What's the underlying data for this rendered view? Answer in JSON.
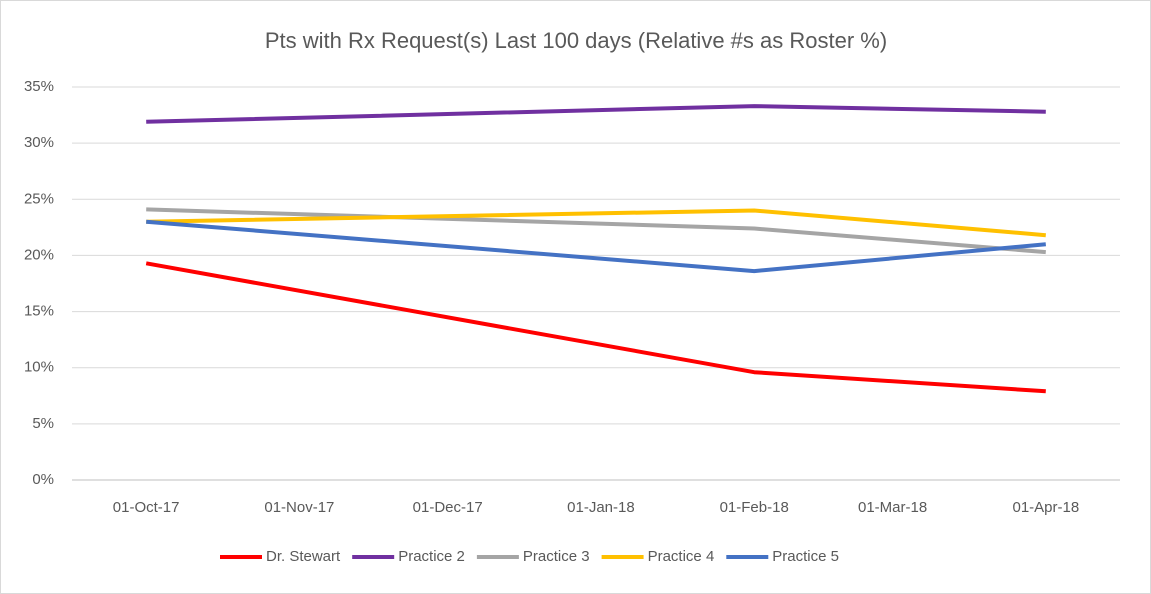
{
  "chart_data": {
    "type": "line",
    "title": "Pts with Rx Request(s) Last 100 days (Relative #s as Roster %)",
    "x": [
      "2017-10-01",
      "2018-02-01",
      "2018-04-01"
    ],
    "xlim": [
      "2017-09-16",
      "2018-04-16"
    ],
    "xticks": [
      {
        "value": "2017-10-01",
        "label": "01-Oct-17"
      },
      {
        "value": "2017-11-01",
        "label": "01-Nov-17"
      },
      {
        "value": "2017-12-01",
        "label": "01-Dec-17"
      },
      {
        "value": "2018-01-01",
        "label": "01-Jan-18"
      },
      {
        "value": "2018-02-01",
        "label": "01-Feb-18"
      },
      {
        "value": "2018-03-01",
        "label": "01-Mar-18"
      },
      {
        "value": "2018-04-01",
        "label": "01-Apr-18"
      }
    ],
    "ylim": [
      0,
      35
    ],
    "yticks": [
      {
        "value": 0,
        "label": "0%"
      },
      {
        "value": 5,
        "label": "5%"
      },
      {
        "value": 10,
        "label": "10%"
      },
      {
        "value": 15,
        "label": "15%"
      },
      {
        "value": 20,
        "label": "20%"
      },
      {
        "value": 25,
        "label": "25%"
      },
      {
        "value": 30,
        "label": "30%"
      },
      {
        "value": 35,
        "label": "35%"
      }
    ],
    "grid": true,
    "legend": "bottom",
    "series": [
      {
        "name": "Dr. Stewart",
        "color": "#ff0000",
        "values": [
          19.3,
          9.6,
          7.9
        ]
      },
      {
        "name": "Practice 2",
        "color": "#7030a0",
        "values": [
          31.9,
          33.3,
          32.8
        ]
      },
      {
        "name": "Practice 3",
        "color": "#a5a5a5",
        "values": [
          24.1,
          22.4,
          20.3
        ]
      },
      {
        "name": "Practice 4",
        "color": "#ffc000",
        "values": [
          23.0,
          24.0,
          21.8
        ]
      },
      {
        "name": "Practice 5",
        "color": "#4472c4",
        "values": [
          23.0,
          18.6,
          21.0
        ]
      }
    ]
  }
}
